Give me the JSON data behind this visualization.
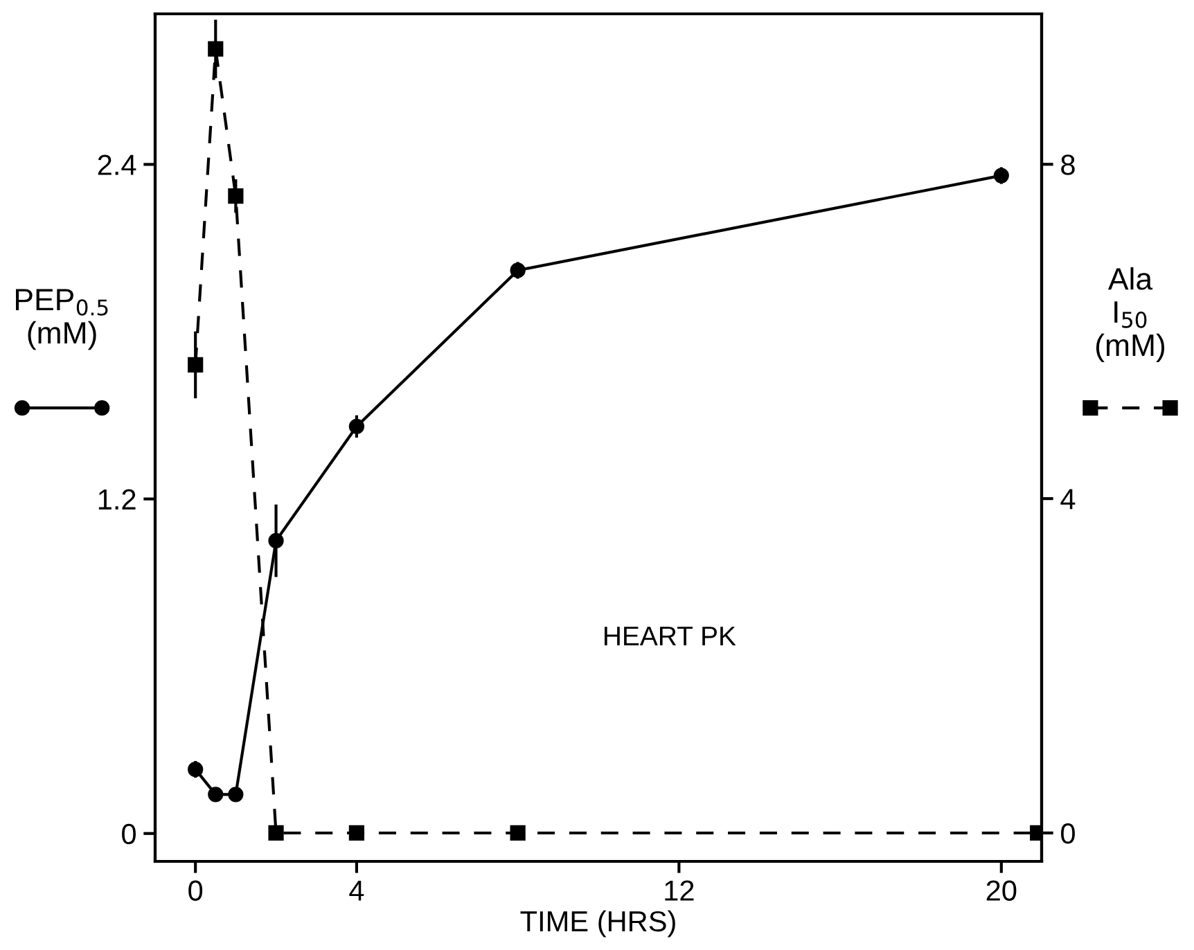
{
  "chart_data": {
    "type": "line",
    "xlabel": "TIME (HRS)",
    "ylabel": "PEP$_{0.5}$\n(mM)",
    "y2label": "Ala\nI$_{50}$\n(mM)",
    "annotations": [
      "HEART PK"
    ],
    "xlim": [
      -1,
      21
    ],
    "xticks": [
      0,
      4,
      12,
      20
    ],
    "ylim": [
      -0.1,
      2.94
    ],
    "yticks": [
      0,
      1.2,
      2.4
    ],
    "y2lim": [
      -0.34,
      9.8
    ],
    "y2ticks": [
      0,
      4,
      8
    ],
    "grid": false,
    "legend": false,
    "series": [
      {
        "color": "#000000",
        "marker": "circle",
        "line_style": "solid",
        "x": [
          0,
          0.5,
          1,
          2,
          4,
          8,
          20
        ],
        "values": [
          0.23,
          0.14,
          0.14,
          1.05,
          1.46,
          2.02,
          2.36
        ],
        "errors": [
          0.03,
          null,
          null,
          0.13,
          0.04,
          0.03,
          0.03
        ]
      },
      {
        "color": "#000000",
        "marker": "square",
        "line_style": "dashed",
        "axis": "y2",
        "x": [
          0,
          0.5,
          1,
          2,
          4,
          8,
          20.9
        ],
        "values": [
          5.6,
          9.38,
          7.62,
          0,
          0,
          0,
          0
        ],
        "errors": [
          0.4,
          0.35,
          0.2,
          null,
          null,
          null,
          null
        ]
      }
    ]
  }
}
